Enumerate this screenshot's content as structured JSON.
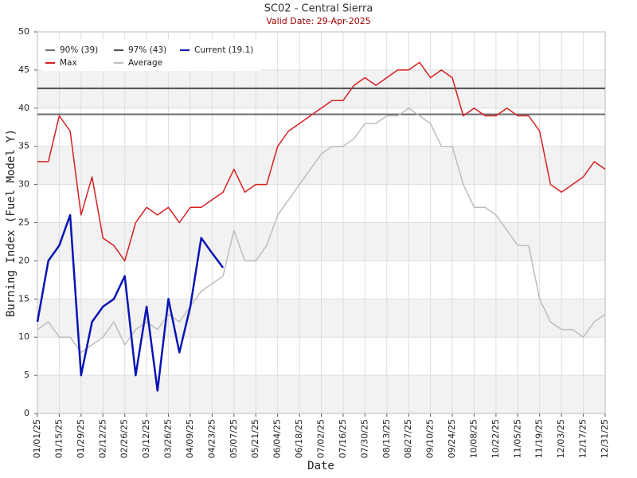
{
  "chart_data": {
    "type": "line",
    "title": "SC02 - Central Sierra",
    "subtitle": "Valid Date: 29-Apr-2025",
    "xlabel": "Date",
    "ylabel": "Burning Index (Fuel Model Y)",
    "x": [
      "01/01/25",
      "01/08/25",
      "01/15/25",
      "01/22/25",
      "01/29/25",
      "02/05/25",
      "02/12/25",
      "02/19/25",
      "02/26/25",
      "03/05/25",
      "03/12/25",
      "03/19/25",
      "03/26/25",
      "04/02/25",
      "04/09/25",
      "04/16/25",
      "04/23/25",
      "04/30/25",
      "05/07/25",
      "05/14/25",
      "05/21/25",
      "05/28/25",
      "06/04/25",
      "06/11/25",
      "06/18/25",
      "06/25/25",
      "07/02/25",
      "07/09/25",
      "07/16/25",
      "07/23/25",
      "07/30/25",
      "08/06/25",
      "08/13/25",
      "08/20/25",
      "08/27/25",
      "09/03/25",
      "09/10/25",
      "09/17/25",
      "09/24/25",
      "10/01/25",
      "10/08/25",
      "10/15/25",
      "10/22/25",
      "10/29/25",
      "11/05/25",
      "11/12/25",
      "11/19/25",
      "11/26/25",
      "12/03/25",
      "12/10/25",
      "12/17/25",
      "12/24/25",
      "12/31/25"
    ],
    "reference_lines": [
      {
        "name": "90% (39)",
        "value": 39.2,
        "color": "#6e6e6e"
      },
      {
        "name": "97% (43)",
        "value": 42.6,
        "color": "#4a4a4a"
      }
    ],
    "series": [
      {
        "name": "Max",
        "color": "#d42020",
        "values": [
          33,
          33,
          39,
          37,
          26,
          31,
          23,
          22,
          20,
          25,
          27,
          26,
          27,
          25,
          27,
          27,
          28,
          29,
          32,
          29,
          30,
          30,
          35,
          37,
          38,
          39,
          40,
          41,
          41,
          43,
          44,
          43,
          44,
          45,
          45,
          46,
          44,
          45,
          44,
          39,
          40,
          39,
          39,
          40,
          39,
          39,
          37,
          30,
          29,
          30,
          31,
          33,
          32
        ]
      },
      {
        "name": "Average",
        "color": "#bdbdbd",
        "values": [
          11,
          12,
          10,
          10,
          8,
          9,
          10,
          12,
          9,
          11,
          12,
          11,
          13,
          12,
          14,
          16,
          17,
          18,
          24,
          20,
          20,
          22,
          26,
          28,
          30,
          32,
          34,
          35,
          35,
          36,
          38,
          38,
          39,
          39,
          40,
          39,
          38,
          35,
          35,
          30,
          27,
          27,
          26,
          24,
          22,
          22,
          15,
          12,
          11,
          11,
          10,
          12,
          13
        ]
      },
      {
        "name": "Current (19.1)",
        "color": "#0a14b4",
        "values": [
          12,
          20,
          22,
          26,
          5,
          12,
          14,
          15,
          18,
          5,
          14,
          3,
          15,
          8,
          14,
          23,
          21,
          19.1,
          null,
          null,
          null,
          null,
          null,
          null,
          null,
          null,
          null,
          null,
          null,
          null,
          null,
          null,
          null,
          null,
          null,
          null,
          null,
          null,
          null,
          null,
          null,
          null,
          null,
          null,
          null,
          null,
          null,
          null,
          null,
          null,
          null,
          null,
          null
        ]
      }
    ],
    "xlim": [
      "01/01/25",
      "12/31/25"
    ],
    "xticks": [
      "01/01/25",
      "01/15/25",
      "01/29/25",
      "02/12/25",
      "02/26/25",
      "03/12/25",
      "03/26/25",
      "04/09/25",
      "04/23/25",
      "05/07/25",
      "05/21/25",
      "06/04/25",
      "06/18/25",
      "07/02/25",
      "07/16/25",
      "07/30/25",
      "08/13/25",
      "08/27/25",
      "09/10/25",
      "09/24/25",
      "10/08/25",
      "10/22/25",
      "11/05/25",
      "11/19/25",
      "12/03/25",
      "12/17/25",
      "12/31/25"
    ],
    "ylim": [
      0,
      50
    ],
    "yticks": [
      0,
      5,
      10,
      15,
      20,
      25,
      30,
      35,
      40,
      45,
      50
    ],
    "grid": true,
    "legend": "upper left"
  }
}
